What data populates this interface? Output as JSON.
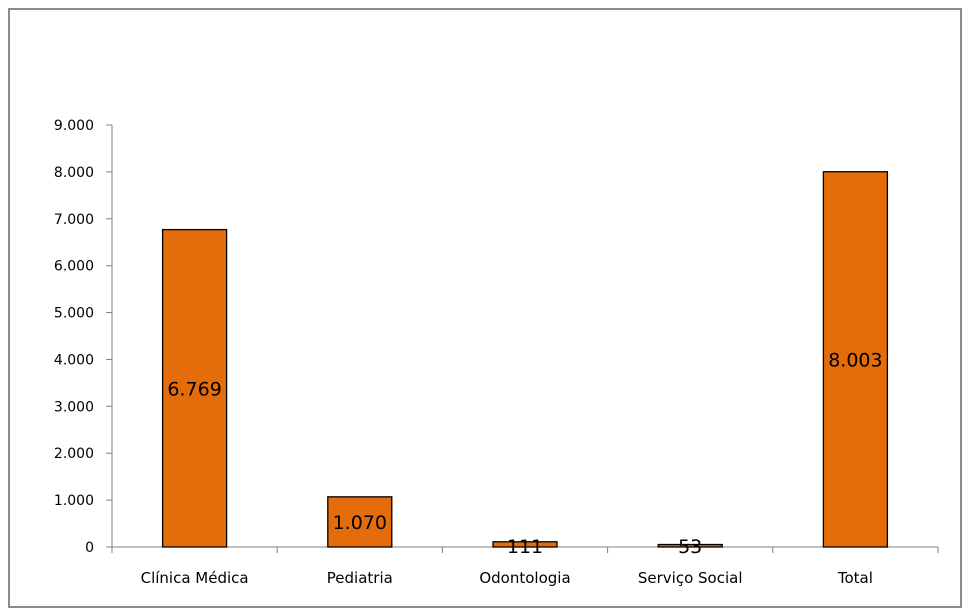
{
  "chart_data": {
    "type": "bar",
    "categories": [
      "Clínica Médica",
      "Pediatria",
      "Odontologia",
      "Serviço Social",
      "Total"
    ],
    "values": [
      6769,
      1070,
      111,
      53,
      8003
    ],
    "data_labels": [
      "6.769",
      "1.070",
      "111",
      "53",
      "8.003"
    ],
    "ylim": [
      0,
      9000
    ],
    "yticks": [
      0,
      1000,
      2000,
      3000,
      4000,
      5000,
      6000,
      7000,
      8000,
      9000
    ],
    "ytick_labels": [
      "0",
      "1.000",
      "2.000",
      "3.000",
      "4.000",
      "5.000",
      "6.000",
      "7.000",
      "8.000",
      "9.000"
    ],
    "grid": false,
    "legend": "none",
    "colors": {
      "bar_fill": "#E46C0A",
      "bar_stroke": "#000000",
      "axis": "#808080"
    }
  }
}
